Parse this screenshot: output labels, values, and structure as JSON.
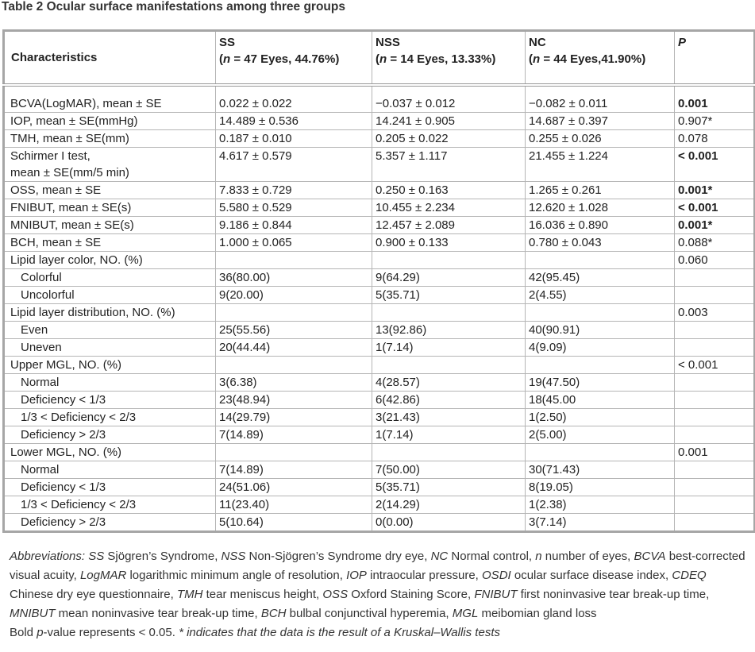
{
  "title": "Table 2 Ocular surface manifestations among three groups",
  "table": {
    "header": [
      {
        "name": "Characteristics"
      },
      {
        "name": "SS",
        "open": "(",
        "n": "n",
        "rest": " = 47 Eyes, 44.76%)"
      },
      {
        "name": "NSS",
        "open": "(",
        "n": "n",
        "rest": " = 14 Eyes, 13.33%)"
      },
      {
        "name": "NC",
        "open": "(",
        "n": "n",
        "rest": " = 44 Eyes,41.90%)"
      },
      {
        "name": "P",
        "italic": true
      }
    ],
    "rows": [
      {
        "cells": [
          "BCVA(LogMAR), mean ± SE",
          "0.022 ± 0.022",
          "−0.037 ± 0.012",
          "−0.082 ± 0.011",
          "0.001"
        ],
        "bold_p": true
      },
      {
        "cells": [
          "IOP, mean ± SE(mmHg)",
          "14.489 ± 0.536",
          "14.241 ± 0.905",
          "14.687 ± 0.397",
          "0.907*"
        ]
      },
      {
        "cells": [
          "TMH, mean ± SE(mm)",
          "0.187 ± 0.010",
          "0.205 ± 0.022",
          "0.255 ± 0.026",
          "0.078"
        ]
      },
      {
        "cells": [
          [
            "Schirmer I test,",
            "mean ± SE(mm/5 min)"
          ],
          "4.617 ± 0.579",
          "5.357 ± 1.117",
          "21.455 ± 1.224",
          "< 0.001"
        ],
        "bold_p": true
      },
      {
        "cells": [
          "OSS, mean ± SE",
          "7.833 ± 0.729",
          "0.250 ± 0.163",
          "1.265 ± 0.261",
          "0.001*"
        ],
        "bold_p": true
      },
      {
        "cells": [
          "FNIBUT, mean ± SE(s)",
          "5.580 ± 0.529",
          "10.455 ± 2.234",
          "12.620 ± 1.028",
          "< 0.001"
        ],
        "bold_p": true
      },
      {
        "cells": [
          "MNIBUT, mean ± SE(s)",
          "9.186 ± 0.844",
          "12.457 ± 2.089",
          "16.036 ± 0.890",
          "0.001*"
        ],
        "bold_p": true
      },
      {
        "cells": [
          "BCH, mean ± SE",
          "1.000 ± 0.065",
          "0.900 ± 0.133",
          "0.780 ± 0.043",
          "0.088*"
        ]
      },
      {
        "cells": [
          "Lipid layer color, NO. (%)",
          null,
          null,
          null,
          "0.060"
        ]
      },
      {
        "cells": [
          "Colorful",
          "36(80.00)",
          "9(64.29)",
          "42(95.45)",
          null
        ],
        "indent": true
      },
      {
        "cells": [
          "Uncolorful",
          "9(20.00)",
          "5(35.71)",
          "2(4.55)",
          null
        ],
        "indent": true
      },
      {
        "cells": [
          "Lipid layer distribution, NO. (%)",
          null,
          null,
          null,
          "0.003"
        ]
      },
      {
        "cells": [
          "Even",
          "25(55.56)",
          "13(92.86)",
          "40(90.91)",
          null
        ],
        "indent": true
      },
      {
        "cells": [
          "Uneven",
          "20(44.44)",
          "1(7.14)",
          "4(9.09)",
          null
        ],
        "indent": true
      },
      {
        "cells": [
          "Upper MGL, NO. (%)",
          null,
          null,
          null,
          "< 0.001"
        ]
      },
      {
        "cells": [
          "Normal",
          "3(6.38)",
          "4(28.57)",
          "19(47.50)",
          null
        ],
        "indent": true
      },
      {
        "cells": [
          "Deficiency < 1/3",
          "23(48.94)",
          "6(42.86)",
          "18(45.00",
          null
        ],
        "indent": true
      },
      {
        "cells": [
          "1/3 < Deficiency < 2/3",
          "14(29.79)",
          "3(21.43)",
          "1(2.50)",
          null
        ],
        "indent": true
      },
      {
        "cells": [
          "Deficiency > 2/3",
          "7(14.89)",
          "1(7.14)",
          "2(5.00)",
          null
        ],
        "indent": true
      },
      {
        "cells": [
          "Lower MGL, NO. (%)",
          null,
          null,
          null,
          "0.001"
        ]
      },
      {
        "cells": [
          "Normal",
          "7(14.89)",
          "7(50.00)",
          "30(71.43)",
          null
        ],
        "indent": true
      },
      {
        "cells": [
          "Deficiency < 1/3",
          "24(51.06)",
          "5(35.71)",
          "8(19.05)",
          null
        ],
        "indent": true
      },
      {
        "cells": [
          "1/3 < Deficiency < 2/3",
          "11(23.40)",
          "2(14.29)",
          "1(2.38)",
          null
        ],
        "indent": true
      },
      {
        "cells": [
          "Deficiency > 2/3",
          "5(10.64)",
          "0(0.00)",
          "3(7.14)",
          null
        ],
        "indent": true
      }
    ]
  },
  "footnote": {
    "paragraphs": [
      [
        {
          "text": "Abbreviations: SS",
          "italic": true
        },
        {
          "text": " Sjögren’s Syndrome, "
        },
        {
          "text": "NSS",
          "italic": true
        },
        {
          "text": " Non-Sjögren’s Syndrome dry eye, "
        },
        {
          "text": "NC",
          "italic": true
        },
        {
          "text": " Normal control, "
        },
        {
          "text": "n",
          "italic": true
        },
        {
          "text": " number of eyes, "
        },
        {
          "text": "BCVA",
          "italic": true
        },
        {
          "text": " best-corrected visual acuity, "
        },
        {
          "text": "LogMAR",
          "italic": true
        },
        {
          "text": " logarithmic minimum angle of resolution, "
        },
        {
          "text": "IOP",
          "italic": true
        },
        {
          "text": " intraocular pressure, "
        },
        {
          "text": "OSDI",
          "italic": true
        },
        {
          "text": " ocular surface disease index, "
        },
        {
          "text": "CDEQ",
          "italic": true
        },
        {
          "text": " Chinese dry eye questionnaire, "
        },
        {
          "text": "TMH",
          "italic": true
        },
        {
          "text": " tear meniscus height, "
        },
        {
          "text": "OSS",
          "italic": true
        },
        {
          "text": " Oxford Staining Score, "
        },
        {
          "text": "FNIBUT",
          "italic": true
        },
        {
          "text": " first noninvasive tear break-up time, "
        },
        {
          "text": "MNIBUT",
          "italic": true
        },
        {
          "text": " mean noninvasive tear break-up time, "
        },
        {
          "text": "BCH",
          "italic": true
        },
        {
          "text": " bulbal conjunctival hyperemia, "
        },
        {
          "text": "MGL",
          "italic": true
        },
        {
          "text": " meibomian gland loss"
        }
      ],
      [
        {
          "text": "Bold "
        },
        {
          "text": "p",
          "italic": true
        },
        {
          "text": "-value represents < 0.05. "
        },
        {
          "text": "* indicates that the data is the result of a Kruskal–Wallis tests",
          "italic": true
        }
      ]
    ]
  }
}
